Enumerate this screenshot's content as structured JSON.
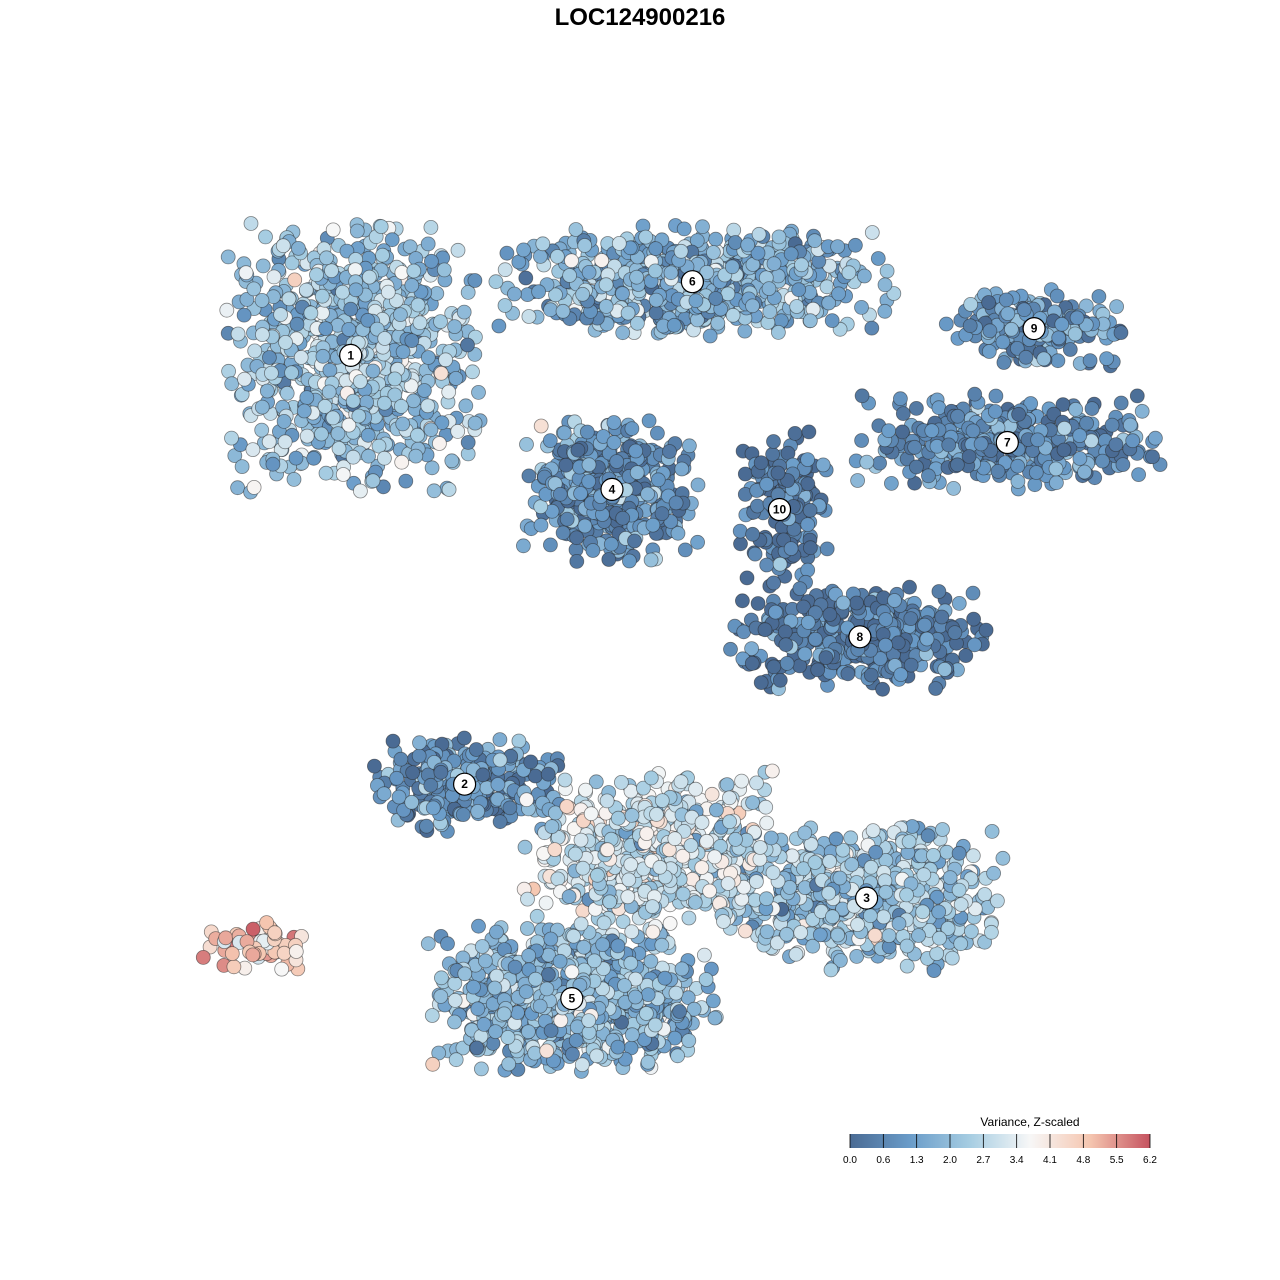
{
  "chart_data": {
    "type": "scatter",
    "title": "LOC124900216",
    "xlabel": "",
    "ylabel": "",
    "grid": false,
    "colorbar": {
      "title": "Variance, Z-scaled",
      "placement": "bottom-right",
      "ticks": [
        "0.0",
        "0.6",
        "1.3",
        "2.0",
        "2.7",
        "3.4",
        "4.1",
        "4.8",
        "5.5",
        "6.2"
      ],
      "range": [
        0.0,
        6.2
      ],
      "colors": [
        "#4a6b94",
        "#6a9cc9",
        "#a6cde2",
        "#f7f7f7",
        "#f5c6b0",
        "#c5525f"
      ]
    },
    "clusters": [
      {
        "label": "1",
        "x": -3.9,
        "y": 3.8,
        "sx": 1.6,
        "sy": 1.7,
        "mean": 2.2,
        "n": 900
      },
      {
        "label": "6",
        "x": 1.2,
        "y": 4.9,
        "sx": 2.5,
        "sy": 0.7,
        "mean": 1.8,
        "n": 700
      },
      {
        "label": "4",
        "x": 0.0,
        "y": 1.8,
        "sx": 1.1,
        "sy": 0.9,
        "mean": 1.1,
        "n": 420
      },
      {
        "label": "10",
        "x": 2.5,
        "y": 1.5,
        "sx": 0.6,
        "sy": 1.0,
        "mean": 0.3,
        "n": 160
      },
      {
        "label": "9",
        "x": 6.3,
        "y": 4.2,
        "sx": 1.1,
        "sy": 0.5,
        "mean": 1.2,
        "n": 190
      },
      {
        "label": "7",
        "x": 5.9,
        "y": 2.5,
        "sx": 1.9,
        "sy": 0.6,
        "mean": 0.9,
        "n": 380
      },
      {
        "label": "8",
        "x": 3.7,
        "y": -0.4,
        "sx": 1.6,
        "sy": 0.7,
        "mean": 0.5,
        "n": 400
      },
      {
        "label": "2",
        "x": -2.2,
        "y": -2.6,
        "sx": 1.2,
        "sy": 0.6,
        "mean": 1.0,
        "n": 300
      },
      {
        "label": "3",
        "x": 3.8,
        "y": -4.3,
        "sx": 1.7,
        "sy": 0.9,
        "mean": 2.3,
        "n": 650
      },
      {
        "label": "5",
        "x": -0.6,
        "y": -5.8,
        "sx": 1.8,
        "sy": 0.9,
        "mean": 2.0,
        "n": 850
      },
      {
        "label": "",
        "x": 0.6,
        "y": -3.6,
        "sx": 1.6,
        "sy": 1.0,
        "mean": 3.0,
        "n": 600
      },
      {
        "label": "",
        "x": -5.3,
        "y": -5.0,
        "sx": 0.7,
        "sy": 0.3,
        "mean": 4.4,
        "n": 55
      }
    ]
  }
}
